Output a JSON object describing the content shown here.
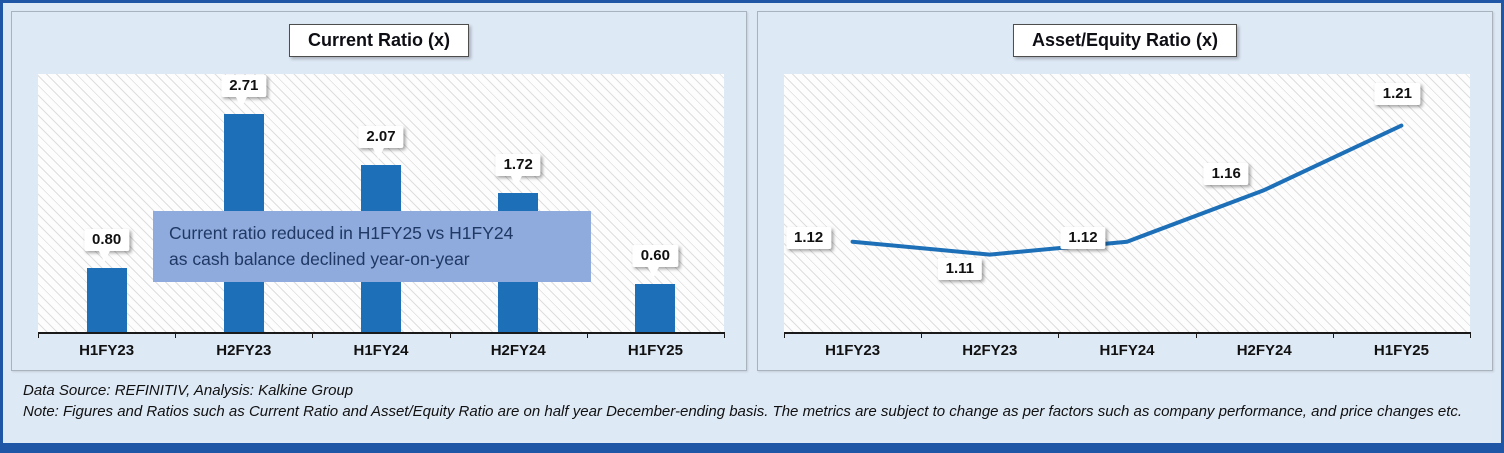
{
  "colors": {
    "accent": "#1D70B8",
    "frame_border": "#2056A6",
    "canvas_bg": "#DEE9F6",
    "annotation_bg": "#8FAADC",
    "annotation_text": "#1F3864"
  },
  "chart_data": [
    {
      "type": "bar",
      "title": "Current Ratio (x)",
      "categories": [
        "H1FY23",
        "H2FY23",
        "H1FY24",
        "H2FY24",
        "H1FY25"
      ],
      "values": [
        0.8,
        2.71,
        2.07,
        1.72,
        0.6
      ],
      "ylim": [
        0,
        3.2
      ],
      "grid": false,
      "legend": "none",
      "annotation": "Current ratio reduced in H1FY25 vs H1FY24\nas cash balance declined year-on-year"
    },
    {
      "type": "line",
      "title": "Asset/Equity Ratio (x)",
      "categories": [
        "H1FY23",
        "H2FY23",
        "H1FY24",
        "H2FY24",
        "H1FY25"
      ],
      "values": [
        1.12,
        1.11,
        1.12,
        1.16,
        1.21
      ],
      "ylim": [
        1.05,
        1.25
      ],
      "grid": false,
      "legend": "none"
    }
  ],
  "footer": {
    "source": "Data Source: REFINITIV, Analysis: Kalkine Group",
    "note": "Note: Figures and Ratios such as Current Ratio and Asset/Equity Ratio are on half year December-ending basis. The metrics are subject to change as per factors such as company performance, and price changes etc."
  }
}
